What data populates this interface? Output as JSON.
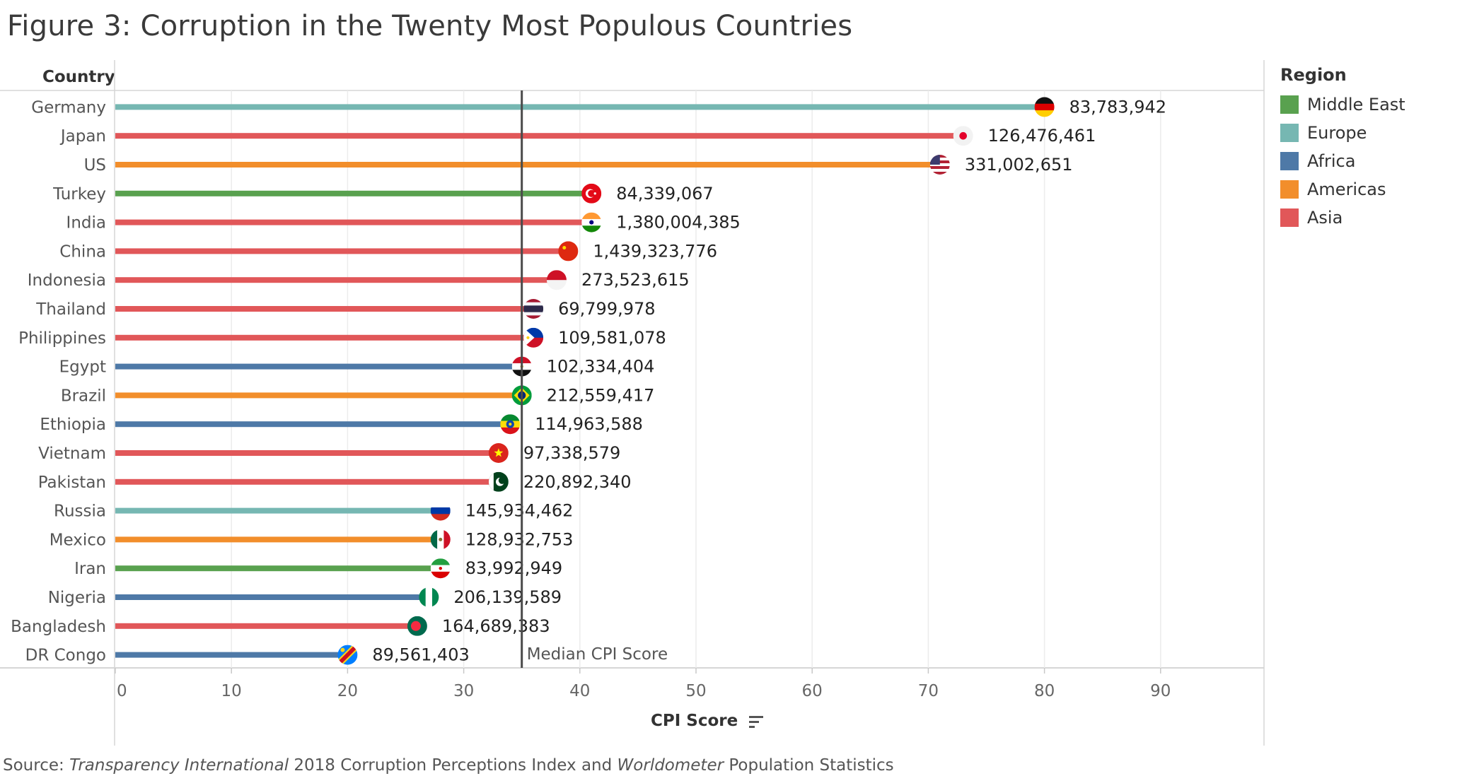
{
  "title": "Figure 3: Corruption in the Twenty Most Populous Countries",
  "row_header": "Country",
  "legend": {
    "title": "Region",
    "items": [
      {
        "label": "Middle East",
        "color": "#59a14f"
      },
      {
        "label": "Europe",
        "color": "#76b7b2"
      },
      {
        "label": "Africa",
        "color": "#4e79a7"
      },
      {
        "label": "Americas",
        "color": "#f28e2b"
      },
      {
        "label": "Asia",
        "color": "#e15759"
      }
    ]
  },
  "source": {
    "prefix": "Source: ",
    "org": "Transparency International",
    "middle": " 2018 Corruption Perceptions Index and ",
    "org2": "Worldometer",
    "suffix": " Population Statistics"
  },
  "chart_data": {
    "type": "bar",
    "title": "Figure 3: Corruption in the Twenty Most Populous Countries",
    "xlabel": "CPI Score",
    "ylabel": "Country",
    "xlim": [
      0,
      98
    ],
    "xticks": [
      0,
      10,
      20,
      30,
      40,
      50,
      60,
      70,
      80,
      90
    ],
    "median": {
      "value": 35,
      "label": "Median CPI Score"
    },
    "rows": [
      {
        "country": "Germany",
        "region": "Europe",
        "cpi": 80,
        "population": "83,783,942",
        "flag": "germany-flag"
      },
      {
        "country": "Japan",
        "region": "Asia",
        "cpi": 73,
        "population": "126,476,461",
        "flag": "japan-flag"
      },
      {
        "country": "US",
        "region": "Americas",
        "cpi": 71,
        "population": "331,002,651",
        "flag": "us-flag"
      },
      {
        "country": "Turkey",
        "region": "Middle East",
        "cpi": 41,
        "population": "84,339,067",
        "flag": "turkey-flag"
      },
      {
        "country": "India",
        "region": "Asia",
        "cpi": 41,
        "population": "1,380,004,385",
        "flag": "india-flag"
      },
      {
        "country": "China",
        "region": "Asia",
        "cpi": 39,
        "population": "1,439,323,776",
        "flag": "china-flag"
      },
      {
        "country": "Indonesia",
        "region": "Asia",
        "cpi": 38,
        "population": "273,523,615",
        "flag": "indonesia-flag"
      },
      {
        "country": "Thailand",
        "region": "Asia",
        "cpi": 36,
        "population": "69,799,978",
        "flag": "thailand-flag"
      },
      {
        "country": "Philippines",
        "region": "Asia",
        "cpi": 36,
        "population": "109,581,078",
        "flag": "philippines-flag"
      },
      {
        "country": "Egypt",
        "region": "Africa",
        "cpi": 35,
        "population": "102,334,404",
        "flag": "egypt-flag"
      },
      {
        "country": "Brazil",
        "region": "Americas",
        "cpi": 35,
        "population": "212,559,417",
        "flag": "brazil-flag"
      },
      {
        "country": "Ethiopia",
        "region": "Africa",
        "cpi": 34,
        "population": "114,963,588",
        "flag": "ethiopia-flag"
      },
      {
        "country": "Vietnam",
        "region": "Asia",
        "cpi": 33,
        "population": "97,338,579",
        "flag": "vietnam-flag"
      },
      {
        "country": "Pakistan",
        "region": "Asia",
        "cpi": 33,
        "population": "220,892,340",
        "flag": "pakistan-flag"
      },
      {
        "country": "Russia",
        "region": "Europe",
        "cpi": 28,
        "population": "145,934,462",
        "flag": "russia-flag"
      },
      {
        "country": "Mexico",
        "region": "Americas",
        "cpi": 28,
        "population": "128,932,753",
        "flag": "mexico-flag"
      },
      {
        "country": "Iran",
        "region": "Middle East",
        "cpi": 28,
        "population": "83,992,949",
        "flag": "iran-flag"
      },
      {
        "country": "Nigeria",
        "region": "Africa",
        "cpi": 27,
        "population": "206,139,589",
        "flag": "nigeria-flag"
      },
      {
        "country": "Bangladesh",
        "region": "Asia",
        "cpi": 26,
        "population": "164,689,383",
        "flag": "bangladesh-flag"
      },
      {
        "country": "DR Congo",
        "region": "Africa",
        "cpi": 20,
        "population": "89,561,403",
        "flag": "dr-congo-flag"
      }
    ]
  }
}
